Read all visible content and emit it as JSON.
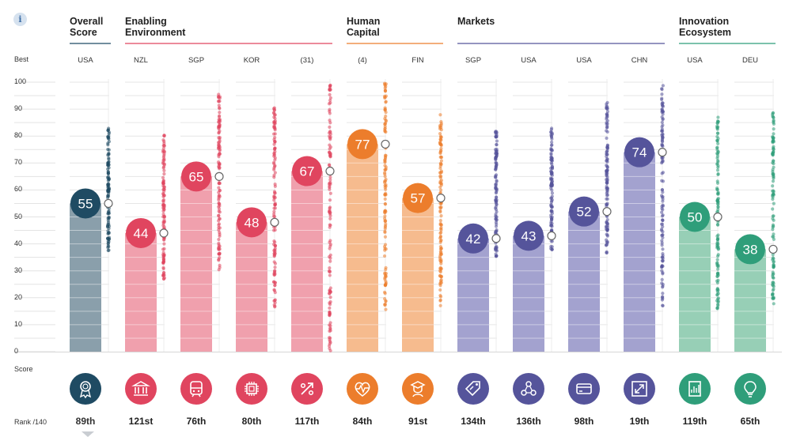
{
  "info": {
    "label": "i"
  },
  "labels": {
    "best": "Best",
    "score": "Score",
    "rank": "Rank /140"
  },
  "groups": [
    {
      "title": "Overall\nScore",
      "color": "#1f4b63"
    },
    {
      "title": "Enabling\nEnvironment",
      "color": "#e0455f"
    },
    {
      "title": "Human\nCapital",
      "color": "#ec7d2c"
    },
    {
      "title": "Markets",
      "color": "#55549b"
    },
    {
      "title": "Innovation\nEcosystem",
      "color": "#2f9e7a"
    }
  ],
  "icons": [
    "award-icon",
    "institution-icon",
    "train-icon",
    "chip-icon",
    "percent-icon",
    "heart-pulse-icon",
    "graduate-icon",
    "tag-icon",
    "network-icon",
    "credit-card-icon",
    "expand-icon",
    "document-chart-icon",
    "lightbulb-icon"
  ],
  "chart_data": {
    "type": "bar",
    "ylim": [
      0,
      100
    ],
    "yticks": [
      "0",
      "10",
      "20",
      "30",
      "40",
      "50",
      "60",
      "70",
      "80",
      "90",
      "100"
    ],
    "pillars": [
      {
        "country": "USA",
        "score": 55,
        "rank": "89th",
        "group": 0,
        "dot_range": [
          37,
          84
        ]
      },
      {
        "country": "NZL",
        "score": 44,
        "rank": "121st",
        "group": 1,
        "dot_range": [
          27,
          82
        ]
      },
      {
        "country": "SGP",
        "score": 65,
        "rank": "76th",
        "group": 1,
        "dot_range": [
          28,
          96
        ]
      },
      {
        "country": "KOR",
        "score": 48,
        "rank": "80th",
        "group": 1,
        "dot_range": [
          16,
          91
        ]
      },
      {
        "country": "(31)",
        "score": 67,
        "rank": "117th",
        "group": 1,
        "dot_range": [
          0,
          100
        ]
      },
      {
        "country": "(4)",
        "score": 77,
        "rank": "84th",
        "group": 2,
        "dot_range": [
          12,
          100
        ]
      },
      {
        "country": "FIN",
        "score": 57,
        "rank": "91st",
        "group": 2,
        "dot_range": [
          17,
          88
        ]
      },
      {
        "country": "SGP",
        "score": 42,
        "rank": "134th",
        "group": 3,
        "dot_range": [
          35,
          82
        ]
      },
      {
        "country": "USA",
        "score": 43,
        "rank": "136th",
        "group": 3,
        "dot_range": [
          37,
          83
        ]
      },
      {
        "country": "USA",
        "score": 52,
        "rank": "98th",
        "group": 3,
        "dot_range": [
          35,
          93
        ]
      },
      {
        "country": "CHN",
        "score": 74,
        "rank": "19th",
        "group": 3,
        "dot_range": [
          16,
          100
        ]
      },
      {
        "country": "USA",
        "score": 50,
        "rank": "119th",
        "group": 4,
        "dot_range": [
          15,
          87
        ]
      },
      {
        "country": "DEU",
        "score": 38,
        "rank": "65th",
        "group": 4,
        "dot_range": [
          17,
          89
        ]
      }
    ]
  }
}
